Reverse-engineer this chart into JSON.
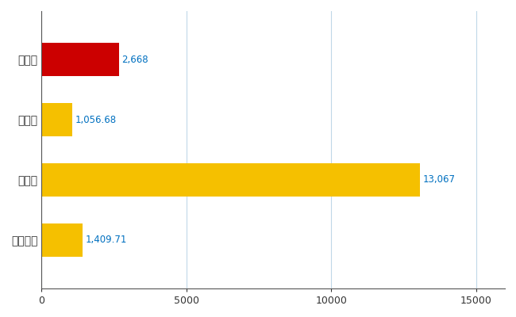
{
  "categories": [
    "大崎市",
    "県平均",
    "県最大",
    "全国平均"
  ],
  "values": [
    2668,
    1056.68,
    13067,
    1409.71
  ],
  "labels": [
    "2,668",
    "1,056.68",
    "13,067",
    "1,409.71"
  ],
  "bar_colors": [
    "#cc0000",
    "#f5c000",
    "#f5c000",
    "#f5c000"
  ],
  "xlim": [
    0,
    16000
  ],
  "xticks": [
    0,
    5000,
    10000,
    15000
  ],
  "background_color": "#ffffff",
  "grid_color": "#c0d8e8",
  "label_color": "#0070c0",
  "label_fontsize": 8.5,
  "tick_fontsize": 9,
  "ytick_fontsize": 10,
  "bar_height": 0.55
}
